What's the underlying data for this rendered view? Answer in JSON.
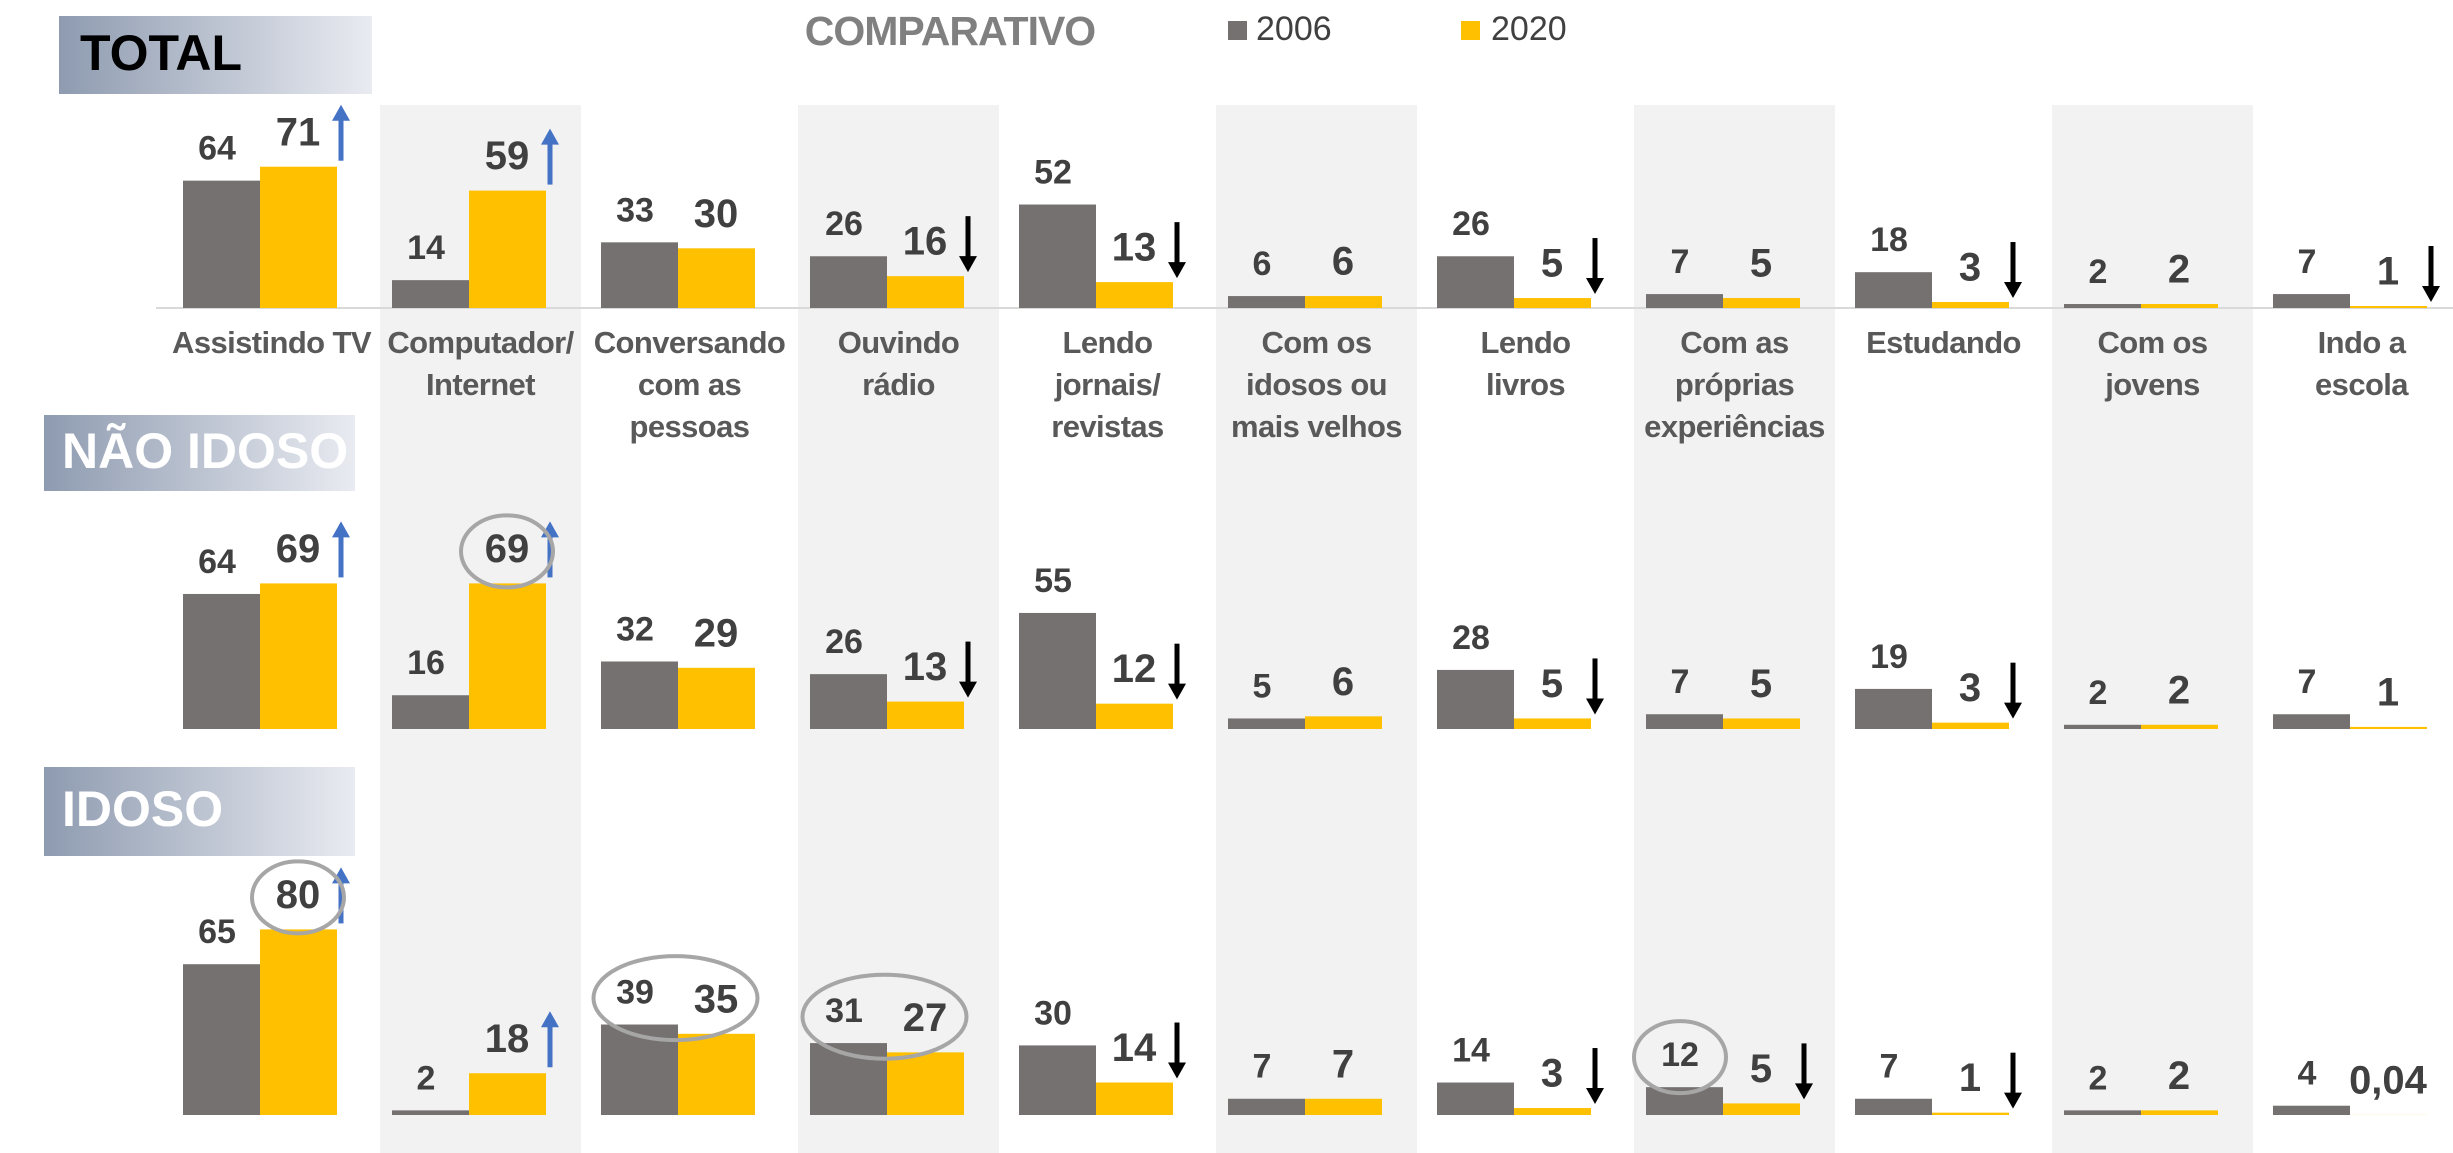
{
  "title": "COMPARATIVO",
  "chart_data": [
    {
      "type": "bar",
      "title": "TOTAL",
      "categories": [
        "Assistindo TV",
        "Computador/\nInternet",
        "Conversando\ncom as\npessoas",
        "Ouvindo\nrádio",
        "Lendo\njornais/\nrevistas",
        "Com os\nidosos ou\nmais velhos",
        "Lendo\nlivros",
        "Com as\npróprias\nexperiências",
        "Estudando",
        "Com os\njovens",
        "Indo a\nescola"
      ],
      "series": [
        {
          "name": "2006",
          "color": "#767171",
          "values": [
            64,
            14,
            33,
            26,
            52,
            6,
            26,
            7,
            18,
            2,
            7
          ]
        },
        {
          "name": "2020",
          "color": "#ffc000",
          "values": [
            71,
            59,
            30,
            16,
            13,
            6,
            5,
            5,
            3,
            2,
            1
          ]
        }
      ],
      "arrows": [
        "up",
        "up",
        null,
        "down",
        "down",
        null,
        "down",
        null,
        "down",
        null,
        "down"
      ]
    },
    {
      "type": "bar",
      "title": "NÃO IDOSO",
      "series": [
        {
          "color": "#767171",
          "values": [
            64,
            16,
            32,
            26,
            55,
            5,
            28,
            7,
            19,
            2,
            7
          ]
        },
        {
          "color": "#ffc000",
          "values": [
            69,
            69,
            29,
            13,
            12,
            6,
            5,
            5,
            3,
            2,
            1
          ]
        }
      ],
      "arrows": [
        "up",
        "up",
        null,
        "down",
        "down",
        null,
        "down",
        null,
        "down",
        null,
        null
      ]
    },
    {
      "type": "bar",
      "title": "IDOSO",
      "series": [
        {
          "color": "#767171",
          "values": [
            65,
            2,
            39,
            31,
            30,
            7,
            14,
            12,
            7,
            2,
            4
          ]
        },
        {
          "color": "#ffc000",
          "values": [
            80,
            18,
            35,
            27,
            14,
            7,
            3,
            5,
            1,
            2,
            0.04
          ],
          "value_labels": [
            "80",
            "18",
            "35",
            "27",
            "14",
            "7",
            "3",
            "5",
            "1",
            "2",
            "0,04"
          ]
        }
      ],
      "arrows": [
        "up",
        "up",
        null,
        null,
        "down",
        null,
        "down",
        "down",
        "down",
        null,
        null
      ]
    }
  ]
}
